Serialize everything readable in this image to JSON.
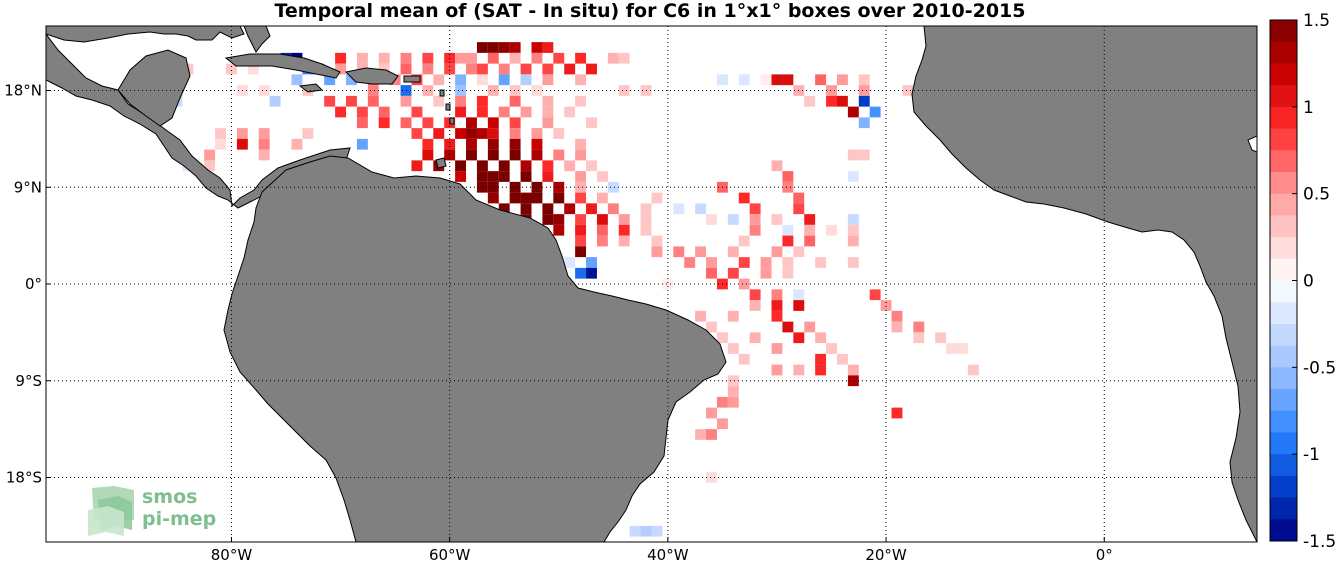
{
  "title": "Temporal mean of (SAT - In situ) for C6 in 1°x1° boxes over 2010-2015",
  "axes": {
    "lon_ticks": [
      {
        "lon": -80,
        "label": "80°W"
      },
      {
        "lon": -60,
        "label": "60°W"
      },
      {
        "lon": -40,
        "label": "40°W"
      },
      {
        "lon": -20,
        "label": "20°W"
      },
      {
        "lon": 0,
        "label": "0°"
      }
    ],
    "lat_ticks": [
      {
        "lat": 18,
        "label": "18°N"
      },
      {
        "lat": 9,
        "label": "9°N"
      },
      {
        "lat": 0,
        "label": "0°"
      },
      {
        "lat": -9,
        "label": "9°S"
      },
      {
        "lat": -18,
        "label": "18°S"
      }
    ],
    "lon_range": [
      -97,
      14
    ],
    "lat_range": [
      -24,
      24
    ],
    "grid": "dotted"
  },
  "colorbar": {
    "min": -1.5,
    "max": 1.5,
    "levels": 24,
    "ticks": [
      {
        "v": 1.5,
        "label": "1.5"
      },
      {
        "v": 1,
        "label": "1"
      },
      {
        "v": 0.5,
        "label": "0.5"
      },
      {
        "v": 0,
        "label": "0"
      },
      {
        "v": -0.5,
        "label": "-0.5"
      },
      {
        "v": -1,
        "label": "-1"
      },
      {
        "v": -1.5,
        "label": "-1.5"
      }
    ]
  },
  "logo": {
    "line1": "smos",
    "line2": "pi-mep"
  },
  "colors": {
    "land": "#808080",
    "ocean": "#ffffff",
    "positive_max": "#7a0000",
    "negative_max": "#000080"
  },
  "chart_data": {
    "type": "heatmap",
    "units": "SAT - In situ",
    "cells": [
      [
        -57,
        22,
        1.5
      ],
      [
        -56,
        22,
        1.5
      ],
      [
        -55,
        22,
        1.4
      ],
      [
        -54,
        22,
        1.3
      ],
      [
        -52,
        22,
        1.2
      ],
      [
        -51,
        22,
        1.0
      ],
      [
        -60,
        21,
        0.9
      ],
      [
        -62,
        21,
        0.8
      ],
      [
        -64,
        21,
        0.6
      ],
      [
        -66,
        21,
        0.4
      ],
      [
        -68,
        21,
        0.4
      ],
      [
        -70,
        21,
        0.9
      ],
      [
        -59,
        21,
        0.5
      ],
      [
        -58,
        21,
        0.5
      ],
      [
        -56,
        21,
        0.7
      ],
      [
        -54,
        21,
        0.4
      ],
      [
        -52,
        21,
        0.6
      ],
      [
        -50,
        21,
        0.8
      ],
      [
        -48,
        21,
        0.9
      ],
      [
        -45,
        21,
        0.4
      ],
      [
        -44,
        21,
        0.3
      ],
      [
        -75,
        21,
        -1.3
      ],
      [
        -74,
        21,
        -1.5
      ],
      [
        -73,
        20,
        -0.9
      ],
      [
        -72,
        20,
        -0.6
      ],
      [
        -70,
        20,
        0.5
      ],
      [
        -68,
        20,
        0.4
      ],
      [
        -66,
        20,
        0.3
      ],
      [
        -64,
        20,
        0.7
      ],
      [
        -62,
        20,
        0.6
      ],
      [
        -60,
        20,
        0.8
      ],
      [
        -58,
        20,
        0.6
      ],
      [
        -57,
        20,
        0.8
      ],
      [
        -55,
        20,
        0.6
      ],
      [
        -53,
        20,
        0.8
      ],
      [
        -51,
        20,
        0.8
      ],
      [
        -49,
        20,
        1.0
      ],
      [
        -47,
        20,
        1.0
      ],
      [
        -86,
        20,
        0.2
      ],
      [
        -84,
        20,
        0.3
      ],
      [
        -80,
        20,
        0.3
      ],
      [
        -78,
        20,
        0.2
      ],
      [
        -74,
        19,
        -0.5
      ],
      [
        -71,
        19,
        -0.7
      ],
      [
        -69,
        19,
        -0.6
      ],
      [
        -67,
        19,
        0.7
      ],
      [
        -65,
        19,
        0.6
      ],
      [
        -63,
        19,
        0.8
      ],
      [
        -61,
        19,
        0.4
      ],
      [
        -59,
        19,
        -0.6
      ],
      [
        -57,
        19,
        0.2
      ],
      [
        -55,
        19,
        -0.7
      ],
      [
        -53,
        19,
        -0.4
      ],
      [
        -51,
        19,
        0.5
      ],
      [
        -48,
        19,
        0.4
      ],
      [
        -30,
        19,
        1.1
      ],
      [
        -29,
        19,
        1.1
      ],
      [
        -26,
        19,
        0.7
      ],
      [
        -24,
        19,
        0.5
      ],
      [
        -22,
        19,
        0.3
      ],
      [
        -35,
        19,
        -0.2
      ],
      [
        -33,
        19,
        -0.2
      ],
      [
        -31,
        19,
        0.1
      ],
      [
        -87,
        18,
        -0.5
      ],
      [
        -85,
        18,
        0.3
      ],
      [
        -79,
        18,
        0.2
      ],
      [
        -77,
        18,
        0.2
      ],
      [
        -73,
        18,
        0.3
      ],
      [
        -67,
        18,
        0.6
      ],
      [
        -64,
        18,
        -1.0
      ],
      [
        -62,
        18,
        0.4
      ],
      [
        -59,
        18,
        -0.5
      ],
      [
        -56,
        18,
        0.4
      ],
      [
        -54,
        18,
        0.3
      ],
      [
        -52,
        18,
        0.2
      ],
      [
        -44,
        18,
        0.3
      ],
      [
        -42,
        18,
        0.3
      ],
      [
        -28,
        18,
        0.4
      ],
      [
        -25,
        18,
        0.5
      ],
      [
        -22,
        18,
        0.5
      ],
      [
        -18,
        18,
        0.3
      ],
      [
        -85,
        17,
        -0.3
      ],
      [
        -76,
        17,
        -0.4
      ],
      [
        -71,
        17,
        0.8
      ],
      [
        -69,
        17,
        0.8
      ],
      [
        -67,
        17,
        0.7
      ],
      [
        -64,
        17,
        0.5
      ],
      [
        -61,
        17,
        0.3
      ],
      [
        -59,
        17,
        0.6
      ],
      [
        -57,
        17,
        0.9
      ],
      [
        -54,
        17,
        0.7
      ],
      [
        -51,
        17,
        0.4
      ],
      [
        -48,
        17,
        0.3
      ],
      [
        -27,
        17,
        0.3
      ],
      [
        -25,
        17,
        0.9
      ],
      [
        -24,
        17,
        1.1
      ],
      [
        -22,
        17,
        -1.2
      ],
      [
        -70,
        16,
        0.9
      ],
      [
        -68,
        16,
        0.8
      ],
      [
        -66,
        16,
        0.7
      ],
      [
        -63,
        16,
        0.8
      ],
      [
        -59,
        16,
        1.0
      ],
      [
        -57,
        16,
        0.9
      ],
      [
        -55,
        16,
        0.6
      ],
      [
        -53,
        16,
        0.5
      ],
      [
        -51,
        16,
        0.4
      ],
      [
        -49,
        16,
        0.3
      ],
      [
        -23,
        16,
        1.3
      ],
      [
        -21,
        16,
        -0.8
      ],
      [
        -68,
        15,
        0.7
      ],
      [
        -66,
        15,
        0.9
      ],
      [
        -64,
        15,
        0.7
      ],
      [
        -62,
        15,
        0.8
      ],
      [
        -60,
        15,
        0.9
      ],
      [
        -58,
        15,
        1.3
      ],
      [
        -56,
        15,
        1.2
      ],
      [
        -54,
        15,
        0.8
      ],
      [
        -51,
        15,
        0.5
      ],
      [
        -47,
        15,
        0.3
      ],
      [
        -22,
        15,
        -0.6
      ],
      [
        -81,
        14,
        0.3
      ],
      [
        -79,
        14,
        0.5
      ],
      [
        -77,
        14,
        0.5
      ],
      [
        -73,
        14,
        0.3
      ],
      [
        -63,
        14,
        0.8
      ],
      [
        -61,
        14,
        1.0
      ],
      [
        -59,
        14,
        1.2
      ],
      [
        -58,
        14,
        1.4
      ],
      [
        -57,
        14,
        1.3
      ],
      [
        -56,
        14,
        1.1
      ],
      [
        -54,
        14,
        0.6
      ],
      [
        -52,
        14,
        0.5
      ],
      [
        -50,
        14,
        0.3
      ],
      [
        -81,
        13,
        0.2
      ],
      [
        -79,
        13,
        1.1
      ],
      [
        -77,
        13,
        0.6
      ],
      [
        -74,
        13,
        0.4
      ],
      [
        -68,
        13,
        -0.7
      ],
      [
        -62,
        13,
        0.9
      ],
      [
        -60,
        13,
        1.0
      ],
      [
        -58,
        13,
        1.3
      ],
      [
        -56,
        13,
        1.4
      ],
      [
        -54,
        13,
        1.4
      ],
      [
        -52,
        13,
        1.2
      ],
      [
        -48,
        13,
        0.4
      ],
      [
        -82,
        12,
        0.5
      ],
      [
        -77,
        12,
        0.4
      ],
      [
        -62,
        12,
        1.1
      ],
      [
        -60,
        12,
        1.3
      ],
      [
        -58,
        12,
        1.5
      ],
      [
        -56,
        12,
        1.5
      ],
      [
        -54,
        12,
        1.5
      ],
      [
        -52,
        12,
        1.3
      ],
      [
        -50,
        12,
        0.6
      ],
      [
        -48,
        12,
        0.5
      ],
      [
        -23,
        12,
        0.3
      ],
      [
        -22,
        12,
        0.3
      ],
      [
        -84,
        11,
        -0.2
      ],
      [
        -82,
        11,
        0.3
      ],
      [
        -63,
        11,
        1.0
      ],
      [
        -61,
        11,
        1.4
      ],
      [
        -59,
        11,
        1.5
      ],
      [
        -57,
        11,
        1.5
      ],
      [
        -55,
        11,
        1.5
      ],
      [
        -53,
        11,
        1.3
      ],
      [
        -51,
        11,
        0.9
      ],
      [
        -49,
        11,
        0.4
      ],
      [
        -47,
        11,
        0.3
      ],
      [
        -30,
        11,
        0.4
      ],
      [
        -59,
        10,
        1.2
      ],
      [
        -57,
        10,
        1.5
      ],
      [
        -56,
        10,
        1.5
      ],
      [
        -55,
        10,
        1.5
      ],
      [
        -53,
        10,
        1.5
      ],
      [
        -51,
        10,
        1.0
      ],
      [
        -48,
        10,
        0.5
      ],
      [
        -46,
        10,
        0.3
      ],
      [
        -29,
        10,
        0.7
      ],
      [
        -23,
        10,
        -0.2
      ],
      [
        -57,
        9,
        1.5
      ],
      [
        -56,
        9,
        1.5
      ],
      [
        -54,
        9,
        1.5
      ],
      [
        -52,
        9,
        1.5
      ],
      [
        -50,
        9,
        1.3
      ],
      [
        -48,
        9,
        0.4
      ],
      [
        -45,
        9,
        -0.3
      ],
      [
        -35,
        9,
        0.7
      ],
      [
        -29,
        9,
        0.6
      ],
      [
        -56,
        8,
        1.4
      ],
      [
        -54,
        8,
        1.5
      ],
      [
        -53,
        8,
        1.5
      ],
      [
        -52,
        8,
        1.5
      ],
      [
        -50,
        8,
        1.5
      ],
      [
        -48,
        8,
        0.8
      ],
      [
        -46,
        8,
        0.4
      ],
      [
        -41,
        8,
        0.3
      ],
      [
        -33,
        8,
        0.9
      ],
      [
        -28,
        8,
        0.7
      ],
      [
        -55,
        7,
        1.5
      ],
      [
        -53,
        7,
        1.5
      ],
      [
        -51,
        7,
        1.5
      ],
      [
        -49,
        7,
        1.3
      ],
      [
        -47,
        7,
        1.0
      ],
      [
        -45,
        7,
        0.6
      ],
      [
        -42,
        7,
        0.3
      ],
      [
        -39,
        7,
        -0.2
      ],
      [
        -37,
        7,
        -0.3
      ],
      [
        -32,
        7,
        0.8
      ],
      [
        -28,
        7,
        0.8
      ],
      [
        -53,
        6,
        1.5
      ],
      [
        -51,
        6,
        1.5
      ],
      [
        -50,
        6,
        1.4
      ],
      [
        -48,
        6,
        0.8
      ],
      [
        -46,
        6,
        1.1
      ],
      [
        -44,
        6,
        0.5
      ],
      [
        -42,
        6,
        0.3
      ],
      [
        -36,
        6,
        0.2
      ],
      [
        -34,
        6,
        -0.3
      ],
      [
        -32,
        6,
        0.5
      ],
      [
        -30,
        6,
        0.3
      ],
      [
        -27,
        6,
        1.0
      ],
      [
        -23,
        6,
        -0.3
      ],
      [
        -50,
        5,
        1.3
      ],
      [
        -48,
        5,
        1.0
      ],
      [
        -46,
        5,
        0.7
      ],
      [
        -44,
        5,
        0.9
      ],
      [
        -42,
        5,
        0.3
      ],
      [
        -32,
        5,
        0.6
      ],
      [
        -29,
        5,
        -0.2
      ],
      [
        -27,
        5,
        0.4
      ],
      [
        -25,
        5,
        0.2
      ],
      [
        -23,
        5,
        0.3
      ],
      [
        -48,
        4,
        0.8
      ],
      [
        -46,
        4,
        0.6
      ],
      [
        -44,
        4,
        0.4
      ],
      [
        -41,
        4,
        0.3
      ],
      [
        -33,
        4,
        0.3
      ],
      [
        -29,
        4,
        0.9
      ],
      [
        -27,
        4,
        0.7
      ],
      [
        -23,
        4,
        0.4
      ],
      [
        -41,
        3,
        0.5
      ],
      [
        -39,
        3,
        0.6
      ],
      [
        -37,
        3,
        0.5
      ],
      [
        -34,
        3,
        0.4
      ],
      [
        -30,
        3,
        0.5
      ],
      [
        -28,
        3,
        0.3
      ],
      [
        -48,
        3,
        1.5
      ],
      [
        -38,
        2,
        0.6
      ],
      [
        -36,
        2,
        0.5
      ],
      [
        -33,
        2,
        0.8
      ],
      [
        -31,
        2,
        0.5
      ],
      [
        -29,
        2,
        0.3
      ],
      [
        -26,
        2,
        0.3
      ],
      [
        -23,
        2,
        0.3
      ],
      [
        -49,
        2,
        -0.2
      ],
      [
        -47,
        2,
        -0.7
      ],
      [
        -48,
        1,
        -1.0
      ],
      [
        -47,
        1,
        -1.4
      ],
      [
        -36,
        1,
        0.7
      ],
      [
        -34,
        1,
        0.8
      ],
      [
        -31,
        1,
        0.5
      ],
      [
        -29,
        1,
        0.3
      ],
      [
        -40,
        0,
        0.1
      ],
      [
        -35,
        0,
        0.9
      ],
      [
        -33,
        0,
        0.5
      ],
      [
        -32,
        -1,
        0.8
      ],
      [
        -30,
        -1,
        0.6
      ],
      [
        -28,
        -1,
        -0.2
      ],
      [
        -21,
        -1,
        0.8
      ],
      [
        -32,
        -2,
        0.4
      ],
      [
        -30,
        -2,
        1.0
      ],
      [
        -28,
        -2,
        1.1
      ],
      [
        -20,
        -2,
        0.5
      ],
      [
        -19,
        -3,
        0.6
      ],
      [
        -37,
        -3,
        0.4
      ],
      [
        -34,
        -3,
        0.4
      ],
      [
        -30,
        -3,
        0.9
      ],
      [
        -19,
        -4,
        0.4
      ],
      [
        -17,
        -4,
        0.6
      ],
      [
        -36,
        -4,
        0.3
      ],
      [
        -29,
        -4,
        1.1
      ],
      [
        -27,
        -4,
        0.5
      ],
      [
        -17,
        -5,
        0.3
      ],
      [
        -15,
        -5,
        0.3
      ],
      [
        -35,
        -5,
        0.3
      ],
      [
        -32,
        -5,
        0.4
      ],
      [
        -28,
        -5,
        1.0
      ],
      [
        -26,
        -5,
        0.4
      ],
      [
        -14,
        -6,
        0.2
      ],
      [
        -13,
        -6,
        0.2
      ],
      [
        -34,
        -6,
        0.3
      ],
      [
        -30,
        -6,
        0.5
      ],
      [
        -25,
        -6,
        0.3
      ],
      [
        -33,
        -7,
        0.3
      ],
      [
        -26,
        -7,
        0.9
      ],
      [
        -24,
        -7,
        0.3
      ],
      [
        -30,
        -8,
        0.5
      ],
      [
        -28,
        -8,
        0.4
      ],
      [
        -26,
        -8,
        0.9
      ],
      [
        -23,
        -8,
        0.4
      ],
      [
        -12,
        -8,
        0.3
      ],
      [
        -34,
        -9,
        0.3
      ],
      [
        -23,
        -9,
        1.3
      ],
      [
        -34,
        -10,
        0.4
      ],
      [
        -35,
        -11,
        0.6
      ],
      [
        -34,
        -11,
        0.5
      ],
      [
        -19,
        -12,
        0.9
      ],
      [
        -36,
        -12,
        0.5
      ],
      [
        -35,
        -13,
        0.5
      ],
      [
        -37,
        -14,
        0.4
      ],
      [
        -36,
        -14,
        0.6
      ],
      [
        -36,
        -18,
        0.2
      ],
      [
        -42,
        -23,
        -0.4
      ],
      [
        -41,
        -23,
        -0.3
      ],
      [
        -43,
        -23,
        -0.3
      ]
    ]
  }
}
